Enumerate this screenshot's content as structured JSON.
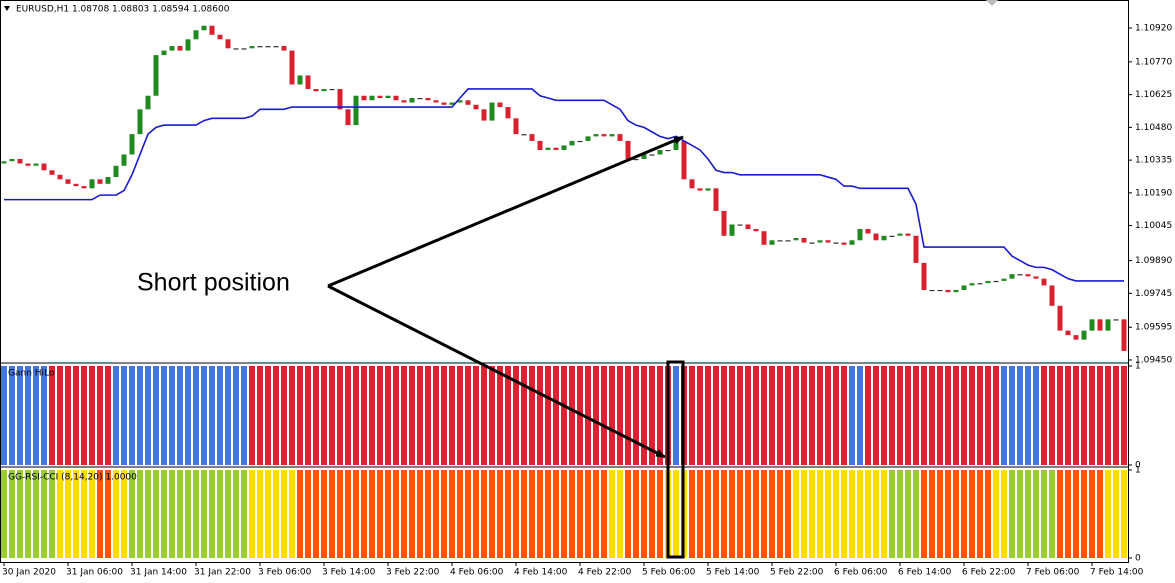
{
  "chart_data": [
    {
      "type": "candlestick",
      "title": "EURUSD,H1  1.08708 1.08803 1.08594 1.08600",
      "annotation": "Short position",
      "up_color": "#1f8a1f",
      "down_color": "#d8202e",
      "xtick_labels": [
        "30 Jan 2020",
        "31 Jan 06:00",
        "31 Jan 14:00",
        "31 Jan 22:00",
        "3 Feb 06:00",
        "3 Feb 14:00",
        "3 Feb 22:00",
        "4 Feb 06:00",
        "4 Feb 14:00",
        "4 Feb 22:00",
        "5 Feb 06:00",
        "5 Feb 14:00",
        "5 Feb 22:00",
        "6 Feb 06:00",
        "6 Feb 14:00",
        "6 Feb 22:00",
        "7 Feb 06:00",
        "7 Feb 14:00"
      ],
      "ylim": [
        1.09441,
        1.11044
      ],
      "yticks": [
        {
          "value": 1.1092,
          "label": "1.10920"
        },
        {
          "value": 1.1077,
          "label": "1.10770"
        },
        {
          "value": 1.10625,
          "label": "1.10625"
        },
        {
          "value": 1.1048,
          "label": "1.10480"
        },
        {
          "value": 1.10335,
          "label": "1.10335"
        },
        {
          "value": 1.1019,
          "label": "1.10190"
        },
        {
          "value": 1.10045,
          "label": "1.10045"
        },
        {
          "value": 1.0989,
          "label": "1.09890"
        },
        {
          "value": 1.09745,
          "label": "1.09745"
        },
        {
          "value": 1.09595,
          "label": "1.09595"
        },
        {
          "value": 1.0945,
          "label": "1.09450"
        }
      ],
      "open": [
        1.1032,
        1.1033,
        1.1034,
        1.1032,
        1.1031,
        1.1032,
        1.1029,
        1.1027,
        1.1025,
        1.1023,
        1.1022,
        1.1021,
        1.1025,
        1.1023,
        1.1026,
        1.1031,
        1.1036,
        1.1045,
        1.1056,
        1.1062,
        1.108,
        1.1082,
        1.1084,
        1.1082,
        1.1087,
        1.1091,
        1.1093,
        1.1089,
        1.1087,
        1.1083,
        1.1083,
        1.1083,
        1.1084,
        1.1084,
        1.1084,
        1.1084,
        1.1082,
        1.1067,
        1.1071,
        1.1065,
        1.1064,
        1.1065,
        1.1065,
        1.1056,
        1.1049,
        1.1062,
        1.106,
        1.1062,
        1.1061,
        1.1062,
        1.106,
        1.1059,
        1.1061,
        1.1061,
        1.106,
        1.1059,
        1.1058,
        1.1059,
        1.106,
        1.1058,
        1.1056,
        1.1051,
        1.1059,
        1.1057,
        1.1052,
        1.1045,
        1.1045,
        1.1042,
        1.1038,
        1.1039,
        1.1038,
        1.104,
        1.1042,
        1.1042,
        1.1044,
        1.1045,
        1.1044,
        1.1045,
        1.1042,
        1.1034,
        1.1034,
        1.1036,
        1.1036,
        1.1038,
        1.1038,
        1.1042,
        1.1025,
        1.1021,
        1.102,
        1.1021,
        1.1011,
        1.1,
        1.1005,
        1.1005,
        1.1003,
        1.1002,
        1.0996,
        1.0998,
        1.0998,
        1.0998,
        1.0999,
        1.0997,
        1.0997,
        1.0998,
        1.0997,
        1.0997,
        1.0996,
        1.0998,
        1.1003,
        1.1001,
        1.0998,
        1.1,
        1.1,
        1.1001,
        1.1,
        1.0988,
        1.0976,
        1.0976,
        1.0976,
        1.0975,
        1.0976,
        1.0978,
        1.0979,
        1.0979,
        1.098,
        1.098,
        1.0981,
        1.0983,
        1.0983,
        1.0982,
        1.0981,
        1.0978,
        1.0969,
        1.0958,
        1.0956,
        1.0954,
        1.0958,
        1.0963,
        1.0958,
        1.0963,
        1.0963
      ],
      "close": [
        1.1033,
        1.1034,
        1.1032,
        1.1031,
        1.1032,
        1.1029,
        1.1027,
        1.1025,
        1.1023,
        1.1022,
        1.1021,
        1.1025,
        1.1023,
        1.1026,
        1.1031,
        1.1036,
        1.1045,
        1.1056,
        1.1062,
        1.108,
        1.1082,
        1.1084,
        1.1082,
        1.1087,
        1.1091,
        1.1093,
        1.1089,
        1.1087,
        1.1083,
        1.1083,
        1.1083,
        1.1084,
        1.1084,
        1.1084,
        1.1084,
        1.1082,
        1.1067,
        1.1071,
        1.1065,
        1.1064,
        1.1065,
        1.1065,
        1.1056,
        1.1049,
        1.1062,
        1.106,
        1.1062,
        1.1061,
        1.1062,
        1.106,
        1.1059,
        1.1061,
        1.1061,
        1.106,
        1.1059,
        1.1058,
        1.1059,
        1.106,
        1.1058,
        1.1056,
        1.1051,
        1.1059,
        1.1057,
        1.1052,
        1.1045,
        1.1045,
        1.1042,
        1.1038,
        1.1039,
        1.1038,
        1.104,
        1.1042,
        1.1042,
        1.1044,
        1.1045,
        1.1044,
        1.1045,
        1.1042,
        1.1034,
        1.1034,
        1.1036,
        1.1036,
        1.1038,
        1.1038,
        1.1042,
        1.1025,
        1.1021,
        1.102,
        1.1021,
        1.1011,
        1.1,
        1.1005,
        1.1005,
        1.1003,
        1.1002,
        1.0996,
        1.0998,
        1.0998,
        1.0998,
        1.0999,
        1.0997,
        1.0997,
        1.0998,
        1.0997,
        1.0997,
        1.0996,
        1.0998,
        1.1003,
        1.1001,
        1.0998,
        1.1,
        1.1,
        1.1001,
        1.1,
        1.0988,
        1.0976,
        1.0976,
        1.0976,
        1.0975,
        1.0976,
        1.0978,
        1.0979,
        1.0979,
        1.098,
        1.098,
        1.0981,
        1.0983,
        1.0983,
        1.0982,
        1.0981,
        1.0978,
        1.0969,
        1.0958,
        1.0956,
        1.0954,
        1.0958,
        1.0963,
        1.0958,
        1.0963,
        1.0963,
        1.0949
      ],
      "line": {
        "color": "#1a1ad0",
        "values": [
          1.1016,
          1.1016,
          1.1016,
          1.1016,
          1.1016,
          1.1016,
          1.1016,
          1.1016,
          1.1016,
          1.1016,
          1.1016,
          1.1016,
          1.1018,
          1.1018,
          1.1018,
          1.102,
          1.1027,
          1.1036,
          1.1045,
          1.1048,
          1.1049,
          1.1049,
          1.1049,
          1.1049,
          1.1049,
          1.1051,
          1.1052,
          1.1052,
          1.1052,
          1.1052,
          1.1052,
          1.1053,
          1.1056,
          1.1056,
          1.1056,
          1.1056,
          1.1057,
          1.1057,
          1.1057,
          1.1057,
          1.1057,
          1.1057,
          1.1057,
          1.1057,
          1.1057,
          1.1057,
          1.1057,
          1.1057,
          1.1057,
          1.1057,
          1.1057,
          1.1057,
          1.1057,
          1.1057,
          1.1057,
          1.1057,
          1.1057,
          1.1061,
          1.1065,
          1.1065,
          1.1065,
          1.1065,
          1.1065,
          1.1065,
          1.1065,
          1.1065,
          1.1065,
          1.1062,
          1.1061,
          1.106,
          1.106,
          1.106,
          1.106,
          1.106,
          1.106,
          1.106,
          1.1058,
          1.1056,
          1.1051,
          1.1049,
          1.1048,
          1.1046,
          1.1044,
          1.1043,
          1.1044,
          1.1042,
          1.104,
          1.1038,
          1.1034,
          1.1029,
          1.1028,
          1.1028,
          1.1027,
          1.1027,
          1.1027,
          1.1027,
          1.1027,
          1.1027,
          1.1027,
          1.1027,
          1.1027,
          1.1027,
          1.1027,
          1.1026,
          1.1025,
          1.1022,
          1.1022,
          1.1021,
          1.1021,
          1.1021,
          1.1021,
          1.1021,
          1.1021,
          1.1021,
          1.1014,
          1.0995,
          1.0995,
          1.0995,
          1.0995,
          1.0995,
          1.0995,
          1.0995,
          1.0995,
          1.0995,
          1.0995,
          1.0995,
          1.0991,
          1.0989,
          1.0987,
          1.0986,
          1.0986,
          1.0985,
          1.0983,
          1.0981,
          1.098,
          1.098,
          1.098,
          1.098,
          1.098,
          1.098,
          1.098
        ]
      }
    },
    {
      "type": "bar",
      "title": "Gann HiLo",
      "ylim": [
        0,
        1
      ],
      "yticks": [
        1,
        0
      ],
      "values": [
        1,
        1,
        1,
        1,
        1,
        1,
        1,
        1,
        1,
        1,
        1,
        1,
        1,
        1,
        1,
        1,
        1,
        1,
        1,
        1,
        1,
        1,
        1,
        1,
        1,
        1,
        1,
        1,
        1,
        1,
        1,
        1,
        1,
        1,
        1,
        1,
        1,
        1,
        1,
        1,
        1,
        1,
        1,
        1,
        1,
        1,
        1,
        1,
        1,
        1,
        1,
        1,
        1,
        1,
        1,
        1,
        1,
        1,
        1,
        1,
        1,
        1,
        1,
        1,
        1,
        1,
        1,
        1,
        1,
        1,
        1,
        1,
        1,
        1,
        1,
        1,
        1,
        1,
        1,
        1,
        1,
        1,
        1,
        1,
        1,
        1,
        1,
        1,
        1,
        1,
        1,
        1,
        1,
        1,
        1,
        1,
        1,
        1,
        1,
        1,
        1,
        1,
        1,
        1,
        1,
        1,
        1,
        1,
        1,
        1,
        1,
        1,
        1,
        1,
        1,
        1,
        1,
        1,
        1,
        1,
        1,
        1,
        1,
        1,
        1,
        1,
        1,
        1,
        1,
        1,
        1,
        1,
        1,
        1,
        1,
        1,
        1,
        1,
        1,
        1,
        1
      ],
      "colors": [
        "#47d",
        "#47d",
        "#47d",
        "#47d",
        "#47d",
        "#47d",
        "#d23",
        "#d23",
        "#d23",
        "#d23",
        "#d23",
        "#d23",
        "#d23",
        "#d23",
        "#47d",
        "#47d",
        "#47d",
        "#47d",
        "#47d",
        "#47d",
        "#47d",
        "#47d",
        "#47d",
        "#47d",
        "#47d",
        "#47d",
        "#47d",
        "#47d",
        "#47d",
        "#47d",
        "#47d",
        "#d23",
        "#d23",
        "#d23",
        "#d23",
        "#d23",
        "#d23",
        "#d23",
        "#d23",
        "#d23",
        "#d23",
        "#d23",
        "#d23",
        "#d23",
        "#d23",
        "#d23",
        "#d23",
        "#d23",
        "#d23",
        "#d23",
        "#d23",
        "#d23",
        "#d23",
        "#d23",
        "#d23",
        "#d23",
        "#d23",
        "#d23",
        "#d23",
        "#d23",
        "#d23",
        "#d23",
        "#d23",
        "#d23",
        "#d23",
        "#d23",
        "#d23",
        "#d23",
        "#d23",
        "#d23",
        "#d23",
        "#d23",
        "#d23",
        "#d23",
        "#d23",
        "#d23",
        "#d23",
        "#d23",
        "#d23",
        "#d23",
        "#d23",
        "#d23",
        "#d23",
        "#d23",
        "#47d",
        "#d23",
        "#d23",
        "#d23",
        "#d23",
        "#d23",
        "#d23",
        "#d23",
        "#d23",
        "#d23",
        "#d23",
        "#d23",
        "#d23",
        "#d23",
        "#d23",
        "#d23",
        "#d23",
        "#d23",
        "#d23",
        "#d23",
        "#d23",
        "#d23",
        "#47d",
        "#47d",
        "#d23",
        "#d23",
        "#d23",
        "#d23",
        "#d23",
        "#d23",
        "#d23",
        "#d23",
        "#d23",
        "#d23",
        "#d23",
        "#d23",
        "#d23",
        "#d23",
        "#d23",
        "#d23",
        "#d23",
        "#47d",
        "#47d",
        "#47d",
        "#47d",
        "#47d",
        "#d23",
        "#d23",
        "#d23",
        "#d23",
        "#d23",
        "#d23",
        "#d23",
        "#d23",
        "#d23",
        "#d23",
        "#d23"
      ]
    },
    {
      "type": "bar",
      "title": "GG-RSI-CCI (8,14,20) 1.0000",
      "ylim": [
        0,
        1
      ],
      "yticks": [
        1,
        0
      ],
      "values": [
        1,
        1,
        1,
        1,
        1,
        1,
        1,
        1,
        1,
        1,
        1,
        1,
        1,
        1,
        1,
        1,
        1,
        1,
        1,
        1,
        1,
        1,
        1,
        1,
        1,
        1,
        1,
        1,
        1,
        1,
        1,
        1,
        1,
        1,
        1,
        1,
        1,
        1,
        1,
        1,
        1,
        1,
        1,
        1,
        1,
        1,
        1,
        1,
        1,
        1,
        1,
        1,
        1,
        1,
        1,
        1,
        1,
        1,
        1,
        1,
        1,
        1,
        1,
        1,
        1,
        1,
        1,
        1,
        1,
        1,
        1,
        1,
        1,
        1,
        1,
        1,
        1,
        1,
        1,
        1,
        1,
        1,
        1,
        1,
        1,
        1,
        1,
        1,
        1,
        1,
        1,
        1,
        1,
        1,
        1,
        1,
        1,
        1,
        1,
        1,
        1,
        1,
        1,
        1,
        1,
        1,
        1,
        1,
        1,
        1,
        1,
        1,
        1,
        1,
        1,
        1,
        1,
        1,
        1,
        1,
        1,
        1,
        1,
        1,
        1,
        1,
        1,
        1,
        1,
        1,
        1,
        1,
        1,
        1,
        1,
        1,
        1,
        1,
        1,
        1,
        1
      ],
      "colors": [
        "#9c3",
        "#9c3",
        "#9c3",
        "#9c3",
        "#9c3",
        "#9c3",
        "#9c3",
        "#fd0",
        "#fd0",
        "#fd0",
        "#fd0",
        "#fd0",
        "#f50",
        "#f50",
        "#fd0",
        "#fd0",
        "#9c3",
        "#9c3",
        "#9c3",
        "#9c3",
        "#9c3",
        "#9c3",
        "#9c3",
        "#9c3",
        "#9c3",
        "#9c3",
        "#9c3",
        "#9c3",
        "#9c3",
        "#9c3",
        "#9c3",
        "#fd0",
        "#fd0",
        "#fd0",
        "#fd0",
        "#fd0",
        "#fd0",
        "#f50",
        "#f50",
        "#f50",
        "#f50",
        "#f50",
        "#f50",
        "#f50",
        "#f50",
        "#f50",
        "#f50",
        "#f50",
        "#f50",
        "#f50",
        "#f50",
        "#f50",
        "#f50",
        "#f50",
        "#f50",
        "#f50",
        "#f50",
        "#f50",
        "#f50",
        "#f50",
        "#f50",
        "#f50",
        "#f50",
        "#f50",
        "#f50",
        "#f50",
        "#f50",
        "#f50",
        "#f50",
        "#f50",
        "#f50",
        "#f50",
        "#f50",
        "#f50",
        "#f50",
        "#f50",
        "#fd0",
        "#fd0",
        "#f50",
        "#f50",
        "#f50",
        "#f50",
        "#f50",
        "#fd0",
        "#fd0",
        "#fd0",
        "#f50",
        "#f50",
        "#f50",
        "#f50",
        "#f50",
        "#f50",
        "#f50",
        "#f50",
        "#f50",
        "#f50",
        "#f50",
        "#f50",
        "#f50",
        "#fd0",
        "#fd0",
        "#fd0",
        "#fd0",
        "#fd0",
        "#fd0",
        "#fd0",
        "#fd0",
        "#fd0",
        "#fd0",
        "#fd0",
        "#fd0",
        "#9c3",
        "#9c3",
        "#9c3",
        "#9c3",
        "#f50",
        "#f50",
        "#f50",
        "#f50",
        "#f50",
        "#f50",
        "#f50",
        "#f50",
        "#f50",
        "#fd0",
        "#fd0",
        "#9c3",
        "#9c3",
        "#9c3",
        "#9c3",
        "#9c3",
        "#9c3",
        "#f50",
        "#f50",
        "#f50",
        "#f50",
        "#f50",
        "#f50",
        "#fd0",
        "#fd0",
        "#fd0"
      ]
    }
  ]
}
